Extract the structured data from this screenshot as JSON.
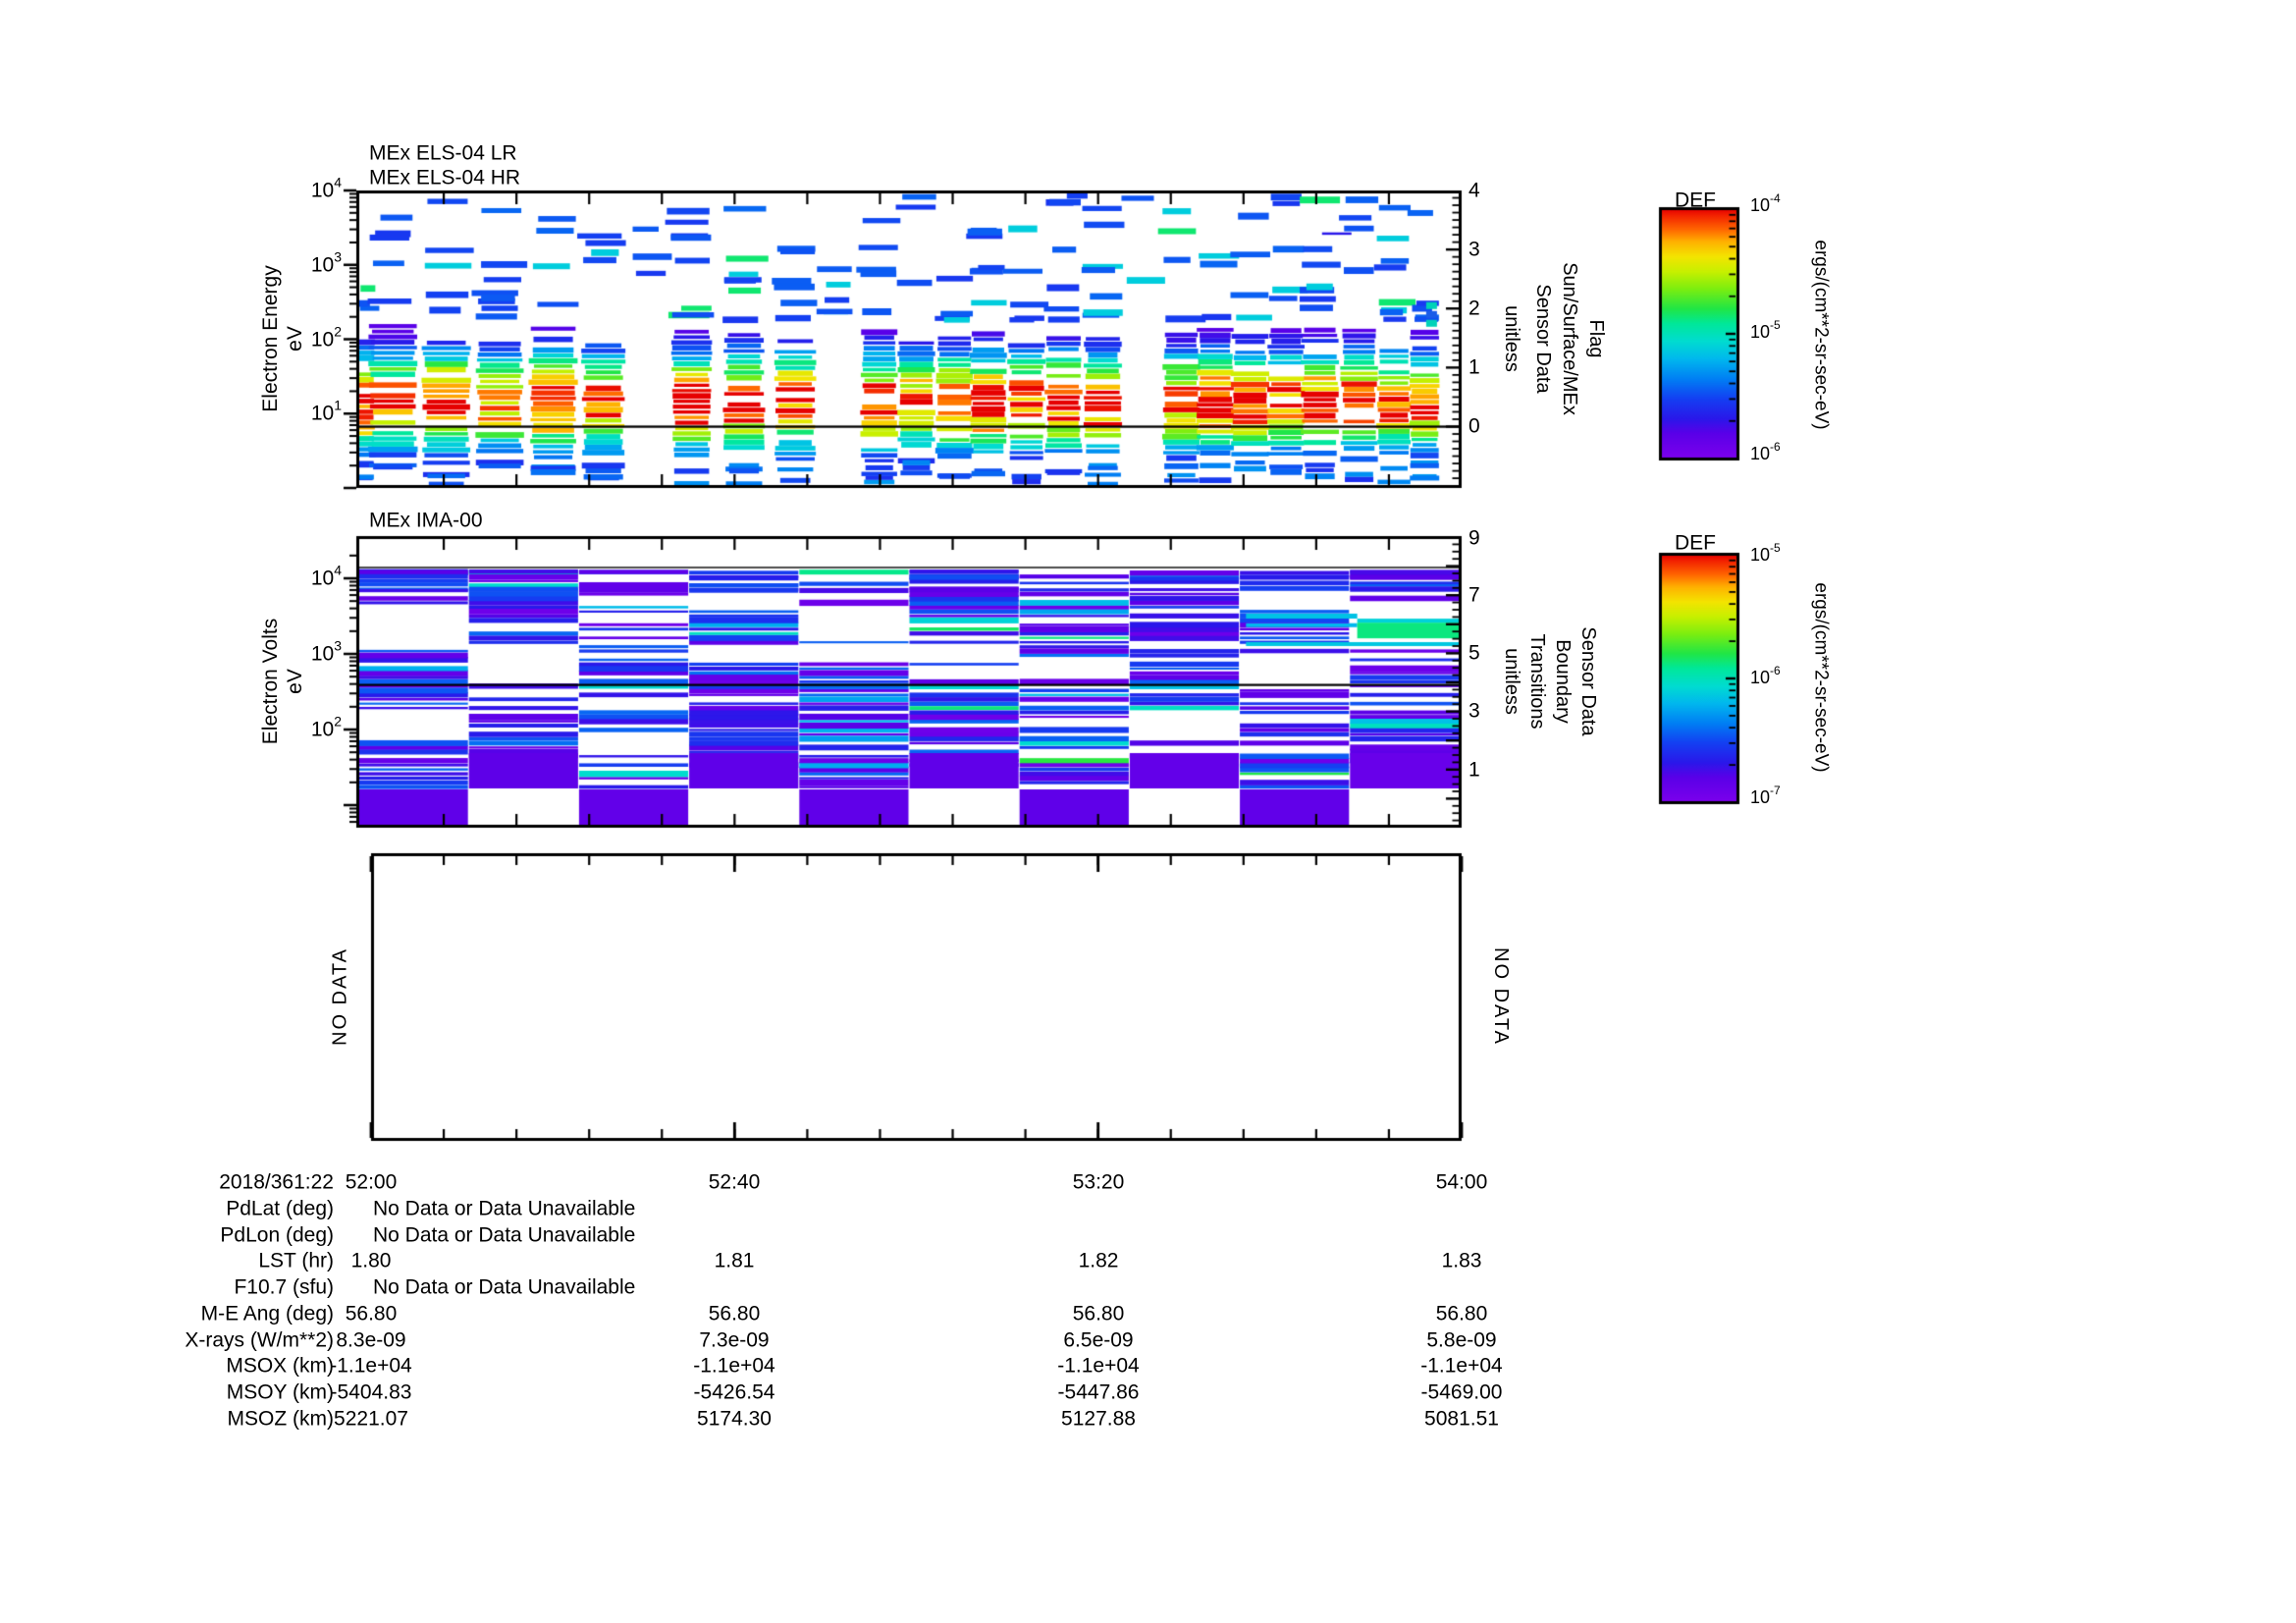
{
  "panels": {
    "els": {
      "title_lr": "MEx ELS-04 LR",
      "title_hr": "MEx ELS-04 HR",
      "ylabel_line1": "Electron Energy",
      "ylabel_line2": "eV",
      "yticks": [
        {
          "b": "10",
          "e": "4"
        },
        {
          "b": "10",
          "e": "3"
        },
        {
          "b": "10",
          "e": "2"
        },
        {
          "b": "10",
          "e": "1"
        }
      ],
      "flag_ticks": [
        "4",
        "3",
        "2",
        "1",
        "0"
      ],
      "right_label_cols": [
        "unitless",
        "Sensor Data",
        "Sun/Surface/MEx",
        "Flag"
      ]
    },
    "ima": {
      "title": "MEx IMA-00",
      "ylabel_line1": "Electron Volts",
      "ylabel_line2": "eV",
      "yticks": [
        {
          "b": "10",
          "e": "4"
        },
        {
          "b": "10",
          "e": "3"
        },
        {
          "b": "10",
          "e": "2"
        }
      ],
      "flag_ticks": [
        "9",
        "7",
        "5",
        "3",
        "1"
      ],
      "right_label_cols": [
        "unitless",
        "Transitions",
        "Boundary",
        "Sensor Data"
      ]
    },
    "nodata": {
      "left": "NO DATA",
      "right": "NO DATA"
    }
  },
  "colorbars": [
    {
      "title": "DEF",
      "ticks": [
        {
          "b": "10",
          "e": "-4"
        },
        {
          "b": "10",
          "e": "-5"
        },
        {
          "b": "10",
          "e": "-6"
        }
      ],
      "unit": "ergs/(cm**2-sr-sec-eV)"
    },
    {
      "title": "DEF",
      "ticks": [
        {
          "b": "10",
          "e": "-5"
        },
        {
          "b": "10",
          "e": "-6"
        },
        {
          "b": "10",
          "e": "-7"
        }
      ],
      "unit": "ergs/(cm**2-sr-sec-eV)"
    }
  ],
  "xaxis": {
    "date": "2018/361:22",
    "t1": "52:00",
    "t2": "52:40",
    "t3": "53:20",
    "t4": "54:00"
  },
  "rows": [
    {
      "label": "PdLat (deg)",
      "nodata": "No Data or Data Unavailable"
    },
    {
      "label": "PdLon (deg)",
      "nodata": "No Data or Data Unavailable"
    },
    {
      "label": "LST (hr)",
      "values": [
        "1.80",
        "1.81",
        "1.82",
        "1.83"
      ]
    },
    {
      "label": "F10.7 (sfu)",
      "nodata": "No Data or Data Unavailable"
    },
    {
      "label": "M-E Ang (deg)",
      "values": [
        "56.80",
        "56.80",
        "56.80",
        "56.80"
      ]
    },
    {
      "label": "X-rays (W/m**2)",
      "values": [
        "8.3e-09",
        "7.3e-09",
        "6.5e-09",
        "5.8e-09"
      ]
    },
    {
      "label": "MSOX (km)",
      "values": [
        "-1.1e+04",
        "-1.1e+04",
        "-1.1e+04",
        "-1.1e+04"
      ]
    },
    {
      "label": "MSOY (km)",
      "values": [
        "-5404.83",
        "-5426.54",
        "-5447.86",
        "-5469.00"
      ]
    },
    {
      "label": "MSOZ (km)",
      "values": [
        "5221.07",
        "5174.30",
        "5127.88",
        "5081.51"
      ]
    }
  ],
  "chart_data": {
    "type": "multi-panel-spectrogram",
    "time_axis": {
      "date": "2018/361:22",
      "ticks": [
        "52:00",
        "52:40",
        "53:20",
        "54:00"
      ],
      "minor_intervals": 15
    },
    "palette": [
      [
        0.0,
        "#7c00ec"
      ],
      [
        0.1,
        "#5a00e8"
      ],
      [
        0.16,
        "#2a18ea"
      ],
      [
        0.24,
        "#1440f2"
      ],
      [
        0.32,
        "#0080f4"
      ],
      [
        0.4,
        "#00b8ee"
      ],
      [
        0.47,
        "#00dcd0"
      ],
      [
        0.54,
        "#00e89a"
      ],
      [
        0.6,
        "#20e646"
      ],
      [
        0.68,
        "#7cee10"
      ],
      [
        0.75,
        "#c8f000"
      ],
      [
        0.81,
        "#f4e400"
      ],
      [
        0.87,
        "#ffb000"
      ],
      [
        0.92,
        "#ff6400"
      ],
      [
        0.97,
        "#f42800"
      ],
      [
        1.0,
        "#e60000"
      ]
    ],
    "els": {
      "title": [
        "MEx ELS-04 LR",
        "MEx ELS-04 HR"
      ],
      "y_scale": "log",
      "y_range_ev": [
        1,
        10000
      ],
      "flag_range": [
        -1,
        4
      ],
      "flag_zero_line": 0,
      "colorbar": {
        "title": "DEF",
        "top": "1e-4",
        "bottom": "1e-6",
        "unit": "ergs/(cm**2-sr-sec-eV)"
      },
      "peak_log10_ev": 1.15,
      "sigma_log10": 0.45,
      "dense_log10_range": [
        0.36,
        2.18
      ],
      "columns": [
        {
          "t": -0.005,
          "w": 0.016,
          "seed": 3,
          "dense": true
        },
        {
          "t": 0.02,
          "w": 0.04,
          "seed": 7,
          "dense": true
        },
        {
          "t": 0.069,
          "w": 0.04,
          "seed": 11,
          "dense": true
        },
        {
          "t": 0.118,
          "w": 0.04,
          "seed": 13,
          "dense": true
        },
        {
          "t": 0.167,
          "w": 0.04,
          "seed": 17,
          "dense": true
        },
        {
          "t": 0.213,
          "w": 0.036,
          "seed": 19,
          "dense": true
        },
        {
          "t": 0.254,
          "w": 0.03,
          "seed": 23,
          "dense": false
        },
        {
          "t": 0.294,
          "w": 0.034,
          "seed": 29,
          "dense": true
        },
        {
          "t": 0.342,
          "w": 0.034,
          "seed": 31,
          "dense": true
        },
        {
          "t": 0.389,
          "w": 0.034,
          "seed": 37,
          "dense": true
        },
        {
          "t": 0.428,
          "w": 0.03,
          "seed": 41,
          "dense": false
        },
        {
          "t": 0.466,
          "w": 0.031,
          "seed": 43,
          "dense": true
        },
        {
          "t": 0.5,
          "w": 0.031,
          "seed": 47,
          "dense": true
        },
        {
          "t": 0.535,
          "w": 0.031,
          "seed": 53,
          "dense": true
        },
        {
          "t": 0.566,
          "w": 0.031,
          "seed": 59,
          "dense": true
        },
        {
          "t": 0.601,
          "w": 0.031,
          "seed": 61,
          "dense": true
        },
        {
          "t": 0.635,
          "w": 0.031,
          "seed": 67,
          "dense": true
        },
        {
          "t": 0.671,
          "w": 0.031,
          "seed": 71,
          "dense": true
        },
        {
          "t": 0.707,
          "w": 0.03,
          "seed": 73,
          "dense": false
        },
        {
          "t": 0.743,
          "w": 0.031,
          "seed": 79,
          "dense": true
        },
        {
          "t": 0.774,
          "w": 0.031,
          "seed": 83,
          "dense": true
        },
        {
          "t": 0.806,
          "w": 0.031,
          "seed": 89,
          "dense": true
        },
        {
          "t": 0.839,
          "w": 0.031,
          "seed": 97,
          "dense": true
        },
        {
          "t": 0.87,
          "w": 0.031,
          "seed": 101,
          "dense": true
        },
        {
          "t": 0.906,
          "w": 0.031,
          "seed": 103,
          "dense": true
        },
        {
          "t": 0.938,
          "w": 0.029,
          "seed": 107,
          "dense": true
        },
        {
          "t": 0.966,
          "w": 0.025,
          "seed": 109,
          "dense": true
        }
      ],
      "extra_bars": [
        {
          "x0": 0.638,
          "x1": 0.657,
          "lg": 3.93,
          "h": 6,
          "v": 0.24
        },
        {
          "x0": 0.872,
          "x1": 0.899,
          "lg": 3.42,
          "h": 2.5,
          "v": 0.16
        }
      ],
      "flag_marks": [
        {
          "t": 0.972,
          "value": 2.05,
          "color": "#00d2b8"
        },
        {
          "t": 0.972,
          "value": 1.9,
          "color": "#1a5ce8"
        },
        {
          "t": 0.972,
          "value": 1.75,
          "color": "#00d2b8"
        }
      ]
    },
    "ima": {
      "title": "MEx IMA-00",
      "y_scale": "log",
      "flag_range": [
        -1,
        9
      ],
      "colorbar": {
        "title": "DEF",
        "top": "1e-5",
        "bottom": "1e-7",
        "unit": "ergs/(cm**2-sr-sec-eV)"
      },
      "blocks": [
        {
          "seed": 5
        },
        {
          "seed": 14
        },
        {
          "seed": 23
        },
        {
          "seed": 32
        },
        {
          "seed": 41
        },
        {
          "seed": 50
        },
        {
          "seed": 59
        },
        {
          "seed": 68
        },
        {
          "seed": 77
        },
        {
          "seed": 86
        }
      ],
      "stripe_step_log10": 0.058,
      "features": [
        {
          "t0": 0.806,
          "t1": 0.907,
          "lg": 3.5,
          "v": 0.42,
          "h": 5
        },
        {
          "t0": 0.806,
          "t1": 0.907,
          "lg": 3.38,
          "v": 0.4,
          "h": 4
        },
        {
          "t0": 0.907,
          "t1": 1.0,
          "lg": 3.31,
          "v": 0.56,
          "h": 16
        },
        {
          "t0": 0.907,
          "t1": 1.0,
          "lg": 3.44,
          "v": 0.45,
          "h": 4
        },
        {
          "t0": 0.806,
          "t1": 1.0,
          "lg": 3.13,
          "v": 0.43,
          "h": 4
        }
      ]
    },
    "bottom_panel": {
      "status": "NO DATA"
    }
  }
}
